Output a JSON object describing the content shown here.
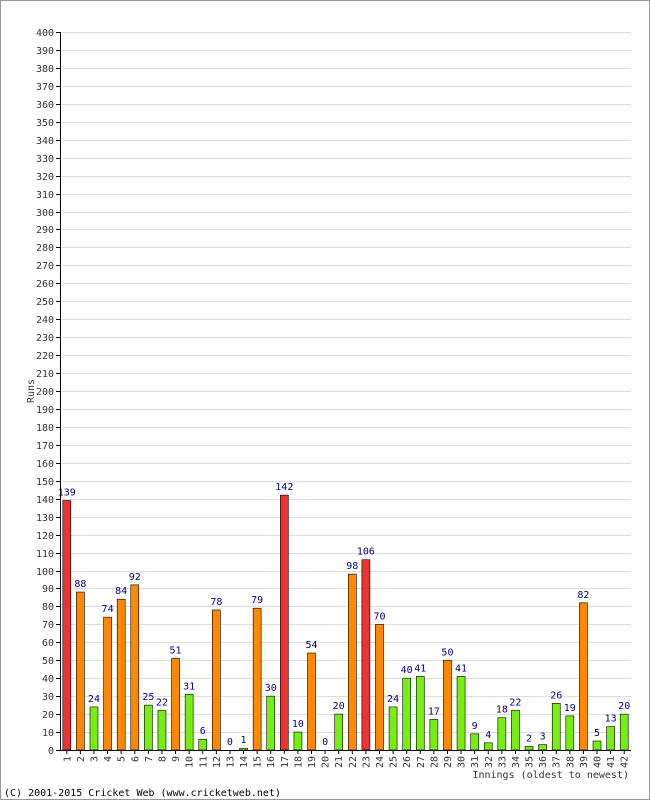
{
  "chart_data": {
    "type": "bar",
    "ylabel": "Runs",
    "xlabel": "Innings (oldest to newest)",
    "ylim": [
      0,
      400
    ],
    "ytick_step": 10,
    "grid": true,
    "categories": [
      "1",
      "2",
      "3",
      "4",
      "5",
      "6",
      "7",
      "8",
      "9",
      "10",
      "11",
      "12",
      "13",
      "14",
      "15",
      "16",
      "17",
      "18",
      "19",
      "20",
      "21",
      "22",
      "23",
      "24",
      "25",
      "26",
      "27",
      "28",
      "29",
      "30",
      "31",
      "32",
      "33",
      "34",
      "35",
      "36",
      "37",
      "38",
      "39",
      "40",
      "41",
      "42"
    ],
    "values": [
      139,
      88,
      24,
      74,
      84,
      92,
      25,
      22,
      51,
      31,
      6,
      78,
      0,
      1,
      79,
      30,
      142,
      10,
      54,
      0,
      20,
      98,
      106,
      70,
      24,
      40,
      41,
      17,
      50,
      41,
      9,
      4,
      18,
      22,
      2,
      3,
      26,
      19,
      82,
      5,
      13,
      20
    ],
    "bar_colors": [
      "red",
      "orange",
      "green",
      "orange",
      "orange",
      "orange",
      "green",
      "green",
      "orange",
      "green",
      "green",
      "orange",
      "green",
      "green",
      "orange",
      "green",
      "red",
      "green",
      "orange",
      "green",
      "green",
      "orange",
      "red",
      "orange",
      "green",
      "green",
      "green",
      "green",
      "orange",
      "green",
      "green",
      "green",
      "green",
      "green",
      "green",
      "green",
      "green",
      "green",
      "orange",
      "green",
      "green",
      "green"
    ],
    "palette": {
      "red": "#ee3333",
      "orange": "#ff8800",
      "green": "#77ee11",
      "label": "#000080",
      "grid": "#dddddd",
      "axis": "#000000"
    }
  },
  "footer": {
    "copyright": "(C) 2001-2015 Cricket Web (www.cricketweb.net)"
  }
}
